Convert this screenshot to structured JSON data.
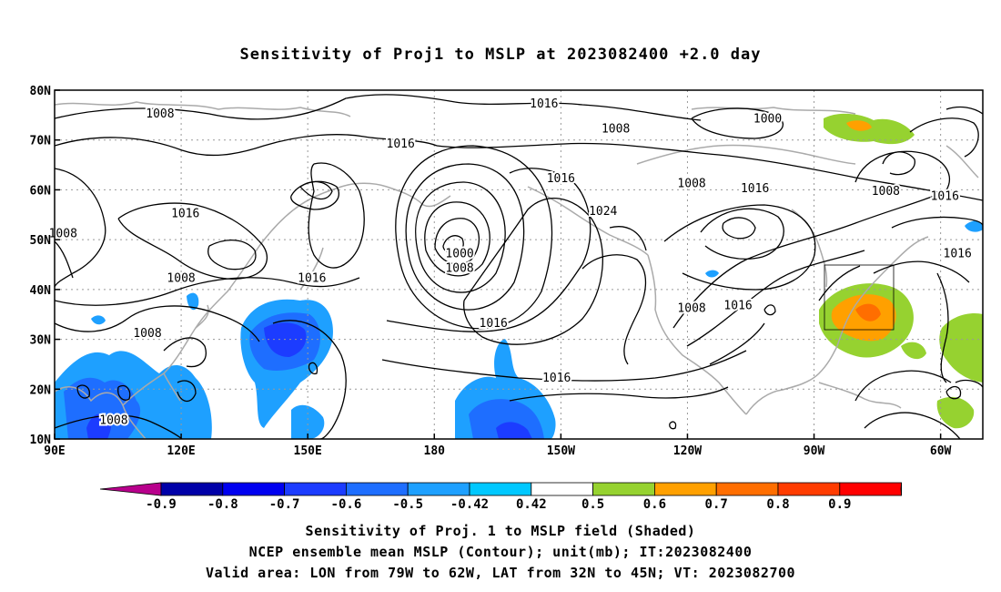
{
  "title": "Sensitivity of Proj1 to MSLP at 2023082400 +2.0 day",
  "map": {
    "lat_labels": [
      "80N",
      "70N",
      "60N",
      "50N",
      "40N",
      "30N",
      "20N",
      "10N"
    ],
    "lon_labels": [
      "90E",
      "120E",
      "150E",
      "180",
      "150W",
      "120W",
      "90W",
      "60W"
    ],
    "lon_range": [
      "90E",
      "50W"
    ],
    "lat_range": [
      "10N",
      "80N"
    ],
    "contour_labels": [
      {
        "text": "1016",
        "lon": -154,
        "lat": 76.5
      },
      {
        "text": "1008",
        "lon": 115,
        "lat": 74.5
      },
      {
        "text": "1008",
        "lon": -137,
        "lat": 71.5
      },
      {
        "text": "1016",
        "lon": 172,
        "lat": 68.5
      },
      {
        "text": "1000",
        "lon": -101,
        "lat": 73.5
      },
      {
        "text": "1016",
        "lon": -150,
        "lat": 61.5
      },
      {
        "text": "1024",
        "lon": -140,
        "lat": 55.0
      },
      {
        "text": "1008",
        "lon": -119,
        "lat": 60.5
      },
      {
        "text": "1016",
        "lon": -104,
        "lat": 59.5
      },
      {
        "text": "1008",
        "lon": -73,
        "lat": 59.0
      },
      {
        "text": "1016",
        "lon": -59,
        "lat": 58.0
      },
      {
        "text": "1016",
        "lon": 121,
        "lat": 54.5
      },
      {
        "text": "1000",
        "lon": -174,
        "lat": 46.5
      },
      {
        "text": "1008",
        "lon": -174,
        "lat": 43.5
      },
      {
        "text": "1008",
        "lon": 92,
        "lat": 50.5
      },
      {
        "text": "1008",
        "lon": 120,
        "lat": 41.5
      },
      {
        "text": "1016",
        "lon": 151,
        "lat": 41.5
      },
      {
        "text": "1016",
        "lon": -166,
        "lat": 32.5
      },
      {
        "text": "1016",
        "lon": -151,
        "lat": 21.5
      },
      {
        "text": "1008",
        "lon": -119,
        "lat": 35.5
      },
      {
        "text": "1016",
        "lon": -108,
        "lat": 36.0
      },
      {
        "text": "1008",
        "lon": 112,
        "lat": 30.5
      },
      {
        "text": "1008",
        "lon": 104,
        "lat": 13.0
      },
      {
        "text": "1016",
        "lon": -56,
        "lat": 46.5
      }
    ]
  },
  "valid_area": {
    "lon_from": "79W",
    "lon_to": "62W",
    "lat_from": "32N",
    "lat_to": "45N"
  },
  "colorbar": {
    "labels": [
      "-0.9",
      "-0.8",
      "-0.7",
      "-0.6",
      "-0.5",
      "-0.42",
      "0.42",
      "0.5",
      "0.6",
      "0.7",
      "0.8",
      "0.9"
    ],
    "colors": [
      "#b8008c",
      "#0000a8",
      "#0000f0",
      "#1c3cff",
      "#1e6eff",
      "#1ea0ff",
      "#00c8ff",
      "#ffffff",
      "#96d230",
      "#ffa000",
      "#ff6e00",
      "#ff3c00",
      "#ff0000",
      "#ffa0c8"
    ]
  },
  "footer": {
    "line1": "Sensitivity of Proj. 1 to MSLP field (Shaded)",
    "line2": "NCEP ensemble mean MSLP (Contour); unit(mb); IT:2023082400",
    "line3": "Valid area: LON from 79W to 62W, LAT from 32N to 45N; VT: 2023082700"
  }
}
